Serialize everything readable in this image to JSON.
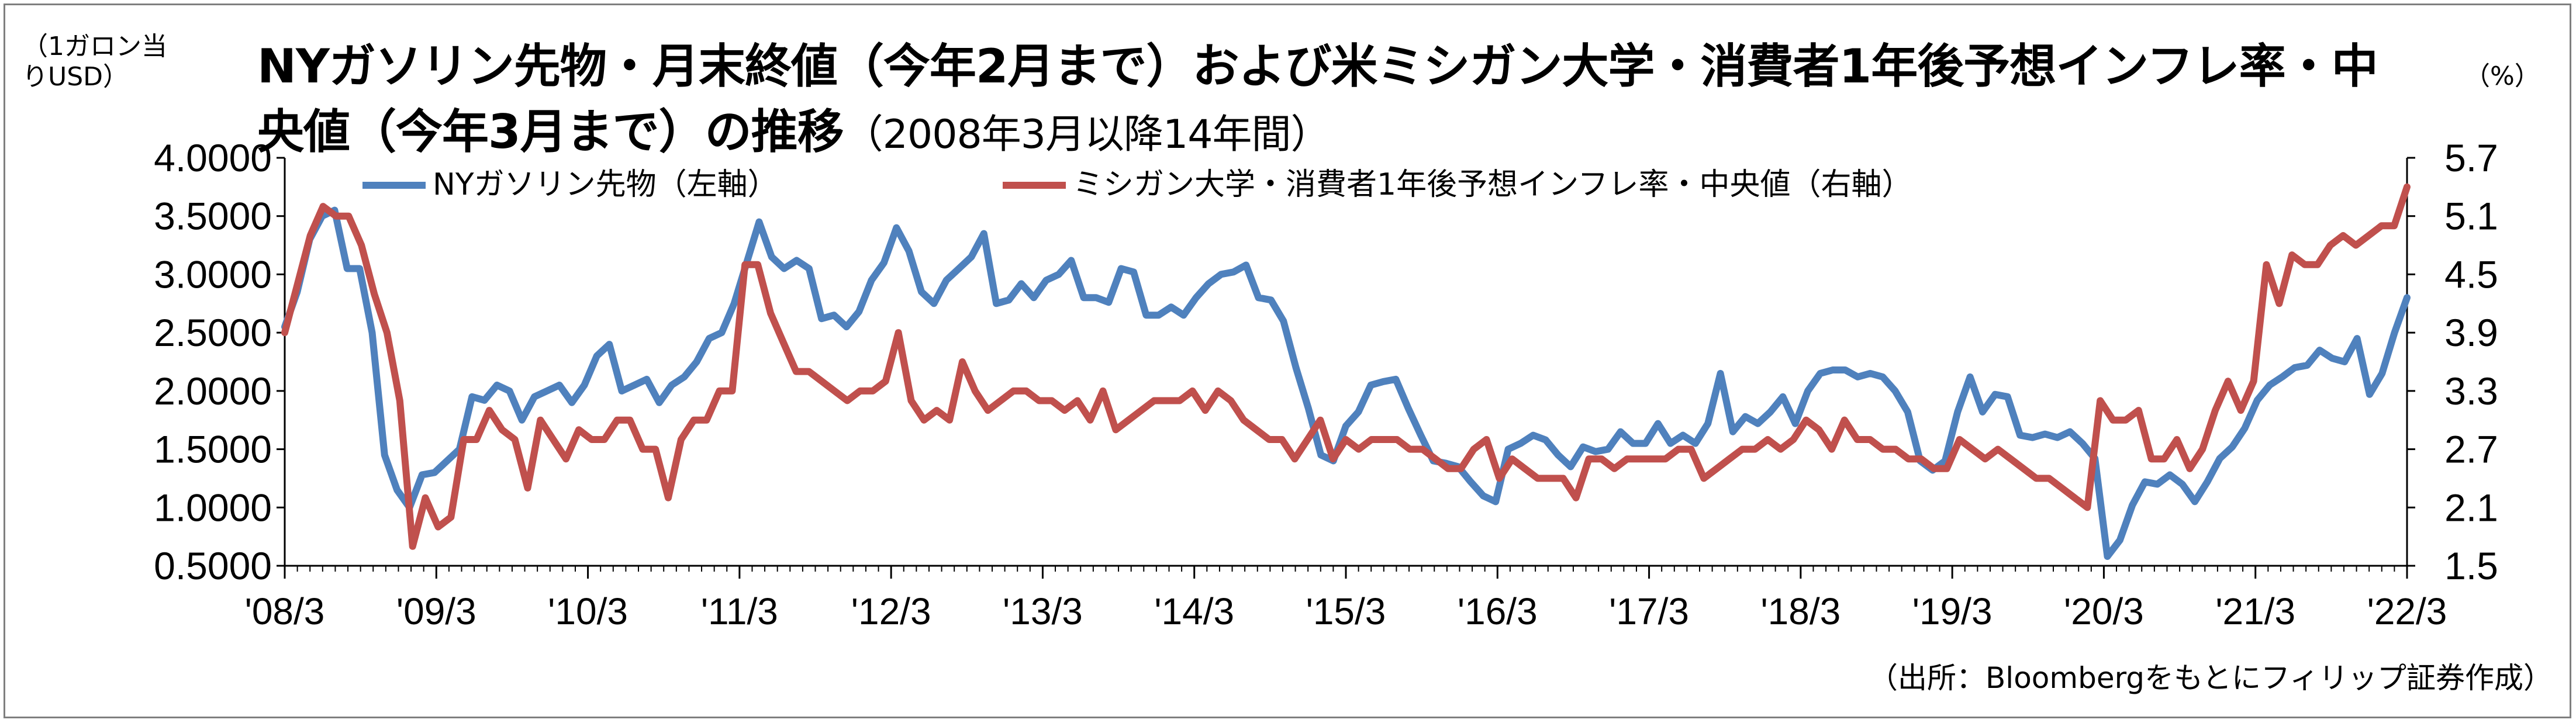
{
  "title": {
    "main": "NYガソリン先物・月末終値（今年2月まで）および米ミシガン大学・消費者1年後予想インフレ率・中央値（今年3月まで）の推移",
    "sub": "（2008年3月以降14年間）"
  },
  "unit_left": "（1ガロン当りUSD）",
  "unit_right": "（%）",
  "source": "（出所：Bloombergをもとにフィリップ証券作成）",
  "chart_data": {
    "type": "line",
    "x_labels": [
      "'08/3",
      "'09/3",
      "'10/3",
      "'11/3",
      "'12/3",
      "'13/3",
      "'14/3",
      "'15/3",
      "'16/3",
      "'17/3",
      "'18/3",
      "'19/3",
      "'20/3",
      "'21/3",
      "'22/3"
    ],
    "y_left": {
      "ticks": [
        "4.0000",
        "3.5000",
        "3.0000",
        "2.5000",
        "2.0000",
        "1.5000",
        "1.0000",
        "0.5000"
      ],
      "lim": [
        0.5,
        4.0
      ]
    },
    "y_right": {
      "ticks": [
        "5.7",
        "5.1",
        "4.5",
        "3.9",
        "3.3",
        "2.7",
        "2.1",
        "1.5"
      ],
      "lim": [
        1.5,
        5.7
      ]
    },
    "legend": {
      "placement": "top"
    },
    "series": [
      {
        "name": "NYガソリン先物（左軸）",
        "axis": "left",
        "color": "#4f81bd",
        "values": [
          2.55,
          2.85,
          3.3,
          3.5,
          3.55,
          3.05,
          3.05,
          2.5,
          1.45,
          1.15,
          1.0,
          1.28,
          1.3,
          1.4,
          1.5,
          1.95,
          1.92,
          2.05,
          2.0,
          1.75,
          1.95,
          2.0,
          2.05,
          1.9,
          2.05,
          2.3,
          2.4,
          2.0,
          2.05,
          2.1,
          1.9,
          2.05,
          2.12,
          2.25,
          2.45,
          2.5,
          2.75,
          3.1,
          3.45,
          3.15,
          3.05,
          3.12,
          3.05,
          2.62,
          2.65,
          2.55,
          2.68,
          2.95,
          3.1,
          3.4,
          3.2,
          2.85,
          2.75,
          2.95,
          3.05,
          3.15,
          3.35,
          2.75,
          2.78,
          2.92,
          2.8,
          2.95,
          3.0,
          3.12,
          2.8,
          2.8,
          2.76,
          3.05,
          3.02,
          2.65,
          2.65,
          2.72,
          2.65,
          2.8,
          2.92,
          3.0,
          3.02,
          3.08,
          2.8,
          2.78,
          2.6,
          2.2,
          1.85,
          1.45,
          1.4,
          1.7,
          1.82,
          2.05,
          2.08,
          2.1,
          1.85,
          1.62,
          1.4,
          1.38,
          1.35,
          1.22,
          1.1,
          1.05,
          1.5,
          1.55,
          1.62,
          1.58,
          1.45,
          1.35,
          1.52,
          1.48,
          1.5,
          1.65,
          1.55,
          1.55,
          1.72,
          1.55,
          1.62,
          1.55,
          1.72,
          2.15,
          1.65,
          1.78,
          1.72,
          1.82,
          1.95,
          1.72,
          2.0,
          2.15,
          2.18,
          2.18,
          2.12,
          2.15,
          2.12,
          2.0,
          1.82,
          1.4,
          1.32,
          1.4,
          1.82,
          2.12,
          1.82,
          1.97,
          1.95,
          1.62,
          1.6,
          1.63,
          1.6,
          1.65,
          1.55,
          1.42,
          0.58,
          0.72,
          1.02,
          1.22,
          1.2,
          1.28,
          1.2,
          1.05,
          1.22,
          1.42,
          1.52,
          1.68,
          1.92,
          2.05,
          2.12,
          2.2,
          2.22,
          2.35,
          2.28,
          2.25,
          2.45,
          1.97,
          2.15,
          2.5,
          2.8
        ]
      },
      {
        "name": "ミシガン大学・消費者1年後予想インフレ率・中央値（右軸）",
        "axis": "right",
        "color": "#c0504d",
        "values": [
          3.9,
          4.4,
          4.9,
          5.2,
          5.1,
          5.1,
          4.8,
          4.3,
          3.9,
          3.2,
          1.7,
          2.2,
          1.9,
          2.0,
          2.8,
          2.8,
          3.1,
          2.9,
          2.8,
          2.3,
          3.0,
          2.8,
          2.6,
          2.9,
          2.8,
          2.8,
          3.0,
          3.0,
          2.7,
          2.7,
          2.2,
          2.8,
          3.0,
          3.0,
          3.3,
          3.3,
          4.6,
          4.6,
          4.1,
          3.8,
          3.5,
          3.5,
          3.4,
          3.3,
          3.2,
          3.3,
          3.3,
          3.4,
          3.9,
          3.2,
          3.0,
          3.1,
          3.0,
          3.6,
          3.3,
          3.1,
          3.2,
          3.3,
          3.3,
          3.2,
          3.2,
          3.1,
          3.2,
          3.0,
          3.3,
          2.9,
          3.0,
          3.1,
          3.2,
          3.2,
          3.2,
          3.3,
          3.1,
          3.3,
          3.2,
          3.0,
          2.9,
          2.8,
          2.8,
          2.6,
          2.8,
          3.0,
          2.6,
          2.8,
          2.7,
          2.8,
          2.8,
          2.8,
          2.7,
          2.7,
          2.6,
          2.5,
          2.5,
          2.7,
          2.8,
          2.4,
          2.6,
          2.5,
          2.4,
          2.4,
          2.4,
          2.2,
          2.6,
          2.6,
          2.5,
          2.6,
          2.6,
          2.6,
          2.6,
          2.7,
          2.7,
          2.4,
          2.5,
          2.6,
          2.7,
          2.7,
          2.8,
          2.7,
          2.8,
          3.0,
          2.9,
          2.7,
          3.0,
          2.8,
          2.8,
          2.7,
          2.7,
          2.6,
          2.6,
          2.5,
          2.5,
          2.8,
          2.7,
          2.6,
          2.7,
          2.6,
          2.5,
          2.4,
          2.4,
          2.3,
          2.2,
          2.1,
          3.2,
          3.0,
          3.0,
          3.1,
          2.6,
          2.6,
          2.8,
          2.5,
          2.7,
          3.1,
          3.4,
          3.1,
          3.4,
          4.6,
          4.2,
          4.7,
          4.6,
          4.6,
          4.8,
          4.9,
          4.8,
          4.9,
          5.0,
          5.0,
          5.4
        ]
      }
    ]
  }
}
